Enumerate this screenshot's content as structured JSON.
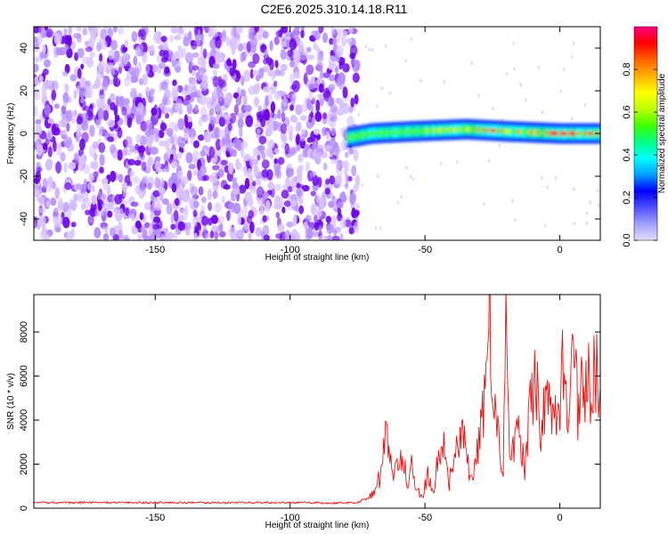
{
  "title": "C2E6.2025.310.14.18.R11",
  "colors": {
    "background": "#ffffff",
    "noise_dark": "#6a00e8",
    "noise_light": "#d9c2ff",
    "snr_line": "#ee1111",
    "colorbar": [
      "#e3dcff",
      "#a0a0ff",
      "#5050ff",
      "#0000ff",
      "#00a0ff",
      "#00ffff",
      "#00ff80",
      "#40ff00",
      "#c0ff00",
      "#ffff00",
      "#ffb000",
      "#ff6000",
      "#ff0000",
      "#ff0080"
    ]
  },
  "chart_data": [
    {
      "type": "heatmap",
      "title": "C2E6.2025.310.14.18.R11",
      "xlabel": "Height of straight line (km)",
      "ylabel": "Frequency (Hz)",
      "xlim": [
        -195,
        15
      ],
      "ylim": [
        -50,
        50
      ],
      "x_ticks": [
        -150,
        -100,
        -50,
        0
      ],
      "x_tick_labels": [
        "-150",
        "-100",
        "-50",
        "0"
      ],
      "y_ticks": [
        -40,
        -20,
        0,
        20,
        40
      ],
      "y_tick_labels": [
        "-40",
        "-20",
        "0",
        "20",
        "40"
      ],
      "noise_region_x": [
        -195,
        -77
      ],
      "signal_band": {
        "x_range": [
          -79,
          15
        ],
        "center_frequency_hz": [
          [
            -79,
            -2
          ],
          [
            -70,
            0
          ],
          [
            -55,
            1
          ],
          [
            -35,
            2
          ],
          [
            -20,
            1
          ],
          [
            0,
            0
          ],
          [
            15,
            0
          ]
        ],
        "half_width_hz": 3
      },
      "colorbar": {
        "label": "Normalized spectral amplitude",
        "range": [
          0,
          1
        ],
        "ticks": [
          0.0,
          0.2,
          0.4,
          0.6,
          0.8
        ],
        "tick_labels": [
          "0.0",
          "0.2",
          "0.4",
          "0.6",
          "0.8"
        ]
      }
    },
    {
      "type": "line",
      "xlabel": "Height of straight line (km)",
      "ylabel": "SNR (10 * v/v)",
      "xlim": [
        -195,
        15
      ],
      "ylim": [
        0,
        9700
      ],
      "x_ticks": [
        -150,
        -100,
        -50,
        0
      ],
      "x_tick_labels": [
        "-150",
        "-100",
        "-50",
        "0"
      ],
      "y_ticks": [
        0,
        2000,
        4000,
        6000,
        8000
      ],
      "y_tick_labels": [
        "0",
        "2000",
        "4000",
        "6000",
        "8000"
      ],
      "series": [
        {
          "x": [
            -195,
            -170,
            -145,
            -120,
            -100,
            -85,
            -75,
            -70,
            -66,
            -64,
            -62,
            -60,
            -58,
            -56,
            -55,
            -53,
            -51,
            -49,
            -47,
            -45,
            -43,
            -41,
            -39,
            -37,
            -35,
            -33,
            -31,
            -29,
            -27,
            -26,
            -25,
            -23,
            -21,
            -20,
            -19,
            -17,
            -15,
            -13,
            -11,
            -9,
            -7,
            -5,
            -3,
            -1,
            1,
            3,
            5,
            7,
            9,
            11,
            13,
            15
          ],
          "y": [
            250,
            260,
            250,
            255,
            250,
            240,
            250,
            600,
            1600,
            3900,
            1200,
            2300,
            2400,
            900,
            2000,
            900,
            400,
            1600,
            700,
            2400,
            2900,
            1200,
            2200,
            3700,
            2600,
            1200,
            2200,
            3700,
            6600,
            9700,
            4700,
            3200,
            1800,
            8300,
            3500,
            2500,
            3700,
            1600,
            5200,
            6200,
            3000,
            5800,
            4700,
            3600,
            6100,
            5200,
            6400,
            4400,
            5900,
            5600,
            6700,
            5500
          ]
        }
      ]
    }
  ]
}
